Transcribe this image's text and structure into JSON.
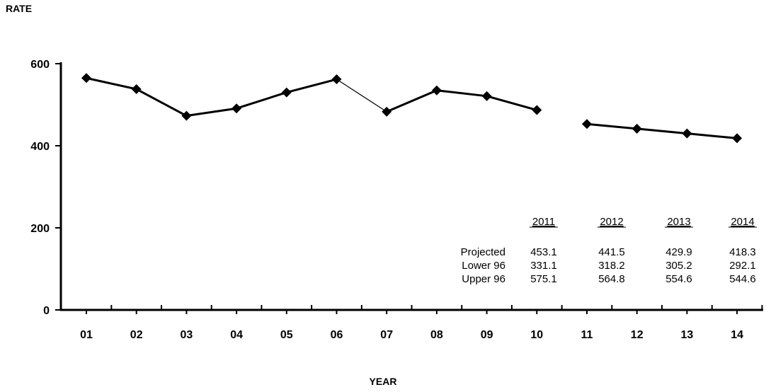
{
  "chart_data": {
    "type": "line",
    "ylabel": "RATE",
    "xlabel": "YEAR",
    "ylim": [
      0,
      600
    ],
    "yticks": [
      0,
      200,
      400,
      600
    ],
    "categories": [
      "01",
      "02",
      "03",
      "04",
      "05",
      "06",
      "07",
      "08",
      "09",
      "10",
      "11",
      "12",
      "13",
      "14"
    ],
    "series": [
      {
        "x": [
          "01",
          "02",
          "03",
          "04",
          "05",
          "06",
          "07",
          "08",
          "09",
          "10"
        ],
        "values": [
          565,
          538,
          473,
          491,
          530,
          562,
          483,
          535,
          521,
          487
        ]
      },
      {
        "x": [
          "11",
          "12",
          "13",
          "14"
        ],
        "values": [
          453.1,
          441.5,
          429.9,
          418.3
        ]
      }
    ],
    "grid": false,
    "table": {
      "columns": [
        "2011",
        "2012",
        "2013",
        "2014"
      ],
      "rows": [
        {
          "label": "Projected",
          "values": [
            "453.1",
            "441.5",
            "429.9",
            "418.3"
          ]
        },
        {
          "label": "Lower 96",
          "values": [
            "331.1",
            "318.2",
            "305.2",
            "292.1"
          ]
        },
        {
          "label": "Upper 96",
          "values": [
            "575.1",
            "564.8",
            "554.6",
            "544.6"
          ]
        }
      ]
    }
  }
}
